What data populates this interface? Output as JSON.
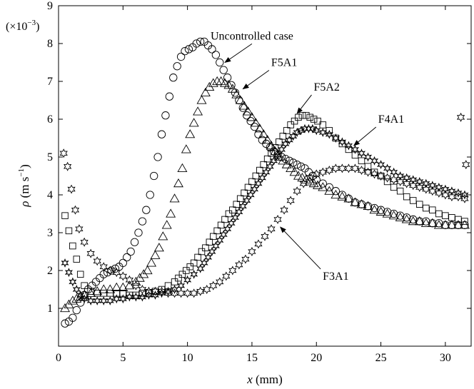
{
  "chart_data": {
    "type": "scatter",
    "title": "",
    "xlabel_var": "x",
    "xlabel_unit": "(mm)",
    "ylabel_var": "ρ",
    "ylabel_unit_main": "(m s",
    "ylabel_unit_sup": "−1",
    "ylabel_unit_end": ")",
    "y_multiplier_main": "(×10",
    "y_multiplier_sup": "−3",
    "y_multiplier_end": ")",
    "xlim": [
      0,
      32
    ],
    "ylim": [
      0,
      9
    ],
    "xticks": [
      "0",
      "5",
      "10",
      "15",
      "20",
      "25",
      "30"
    ],
    "yticks": [
      "1",
      "2",
      "3",
      "4",
      "5",
      "6",
      "7",
      "8",
      "9"
    ],
    "grid": false,
    "series": [
      {
        "name": "Uncontrolled case",
        "marker": "circle",
        "x": [
          0.5,
          0.8,
          1.1,
          1.4,
          1.7,
          2.0,
          2.3,
          2.6,
          2.9,
          3.2,
          3.5,
          3.8,
          4.1,
          4.4,
          4.7,
          5.0,
          5.3,
          5.6,
          5.9,
          6.2,
          6.5,
          6.8,
          7.1,
          7.4,
          7.7,
          8.0,
          8.3,
          8.6,
          8.9,
          9.2,
          9.5,
          9.8,
          10.1,
          10.4,
          10.7,
          11.0,
          11.3,
          11.6,
          11.9,
          12.2,
          12.5,
          12.8,
          13.1,
          13.4,
          13.7,
          14.0,
          14.3,
          14.6,
          14.9,
          15.2,
          15.5,
          15.8,
          16.1,
          16.4,
          16.7,
          17.0,
          17.3,
          17.6,
          17.9,
          18.2,
          18.5,
          18.8,
          19.1,
          19.4,
          19.7,
          20.0,
          20.5,
          21.0,
          21.5,
          22.0,
          22.5,
          23.0,
          23.5,
          24.0,
          24.5,
          25.0,
          25.5,
          26.0,
          26.5,
          27.0,
          27.5,
          28.0,
          28.5,
          29.0,
          29.5,
          30.0,
          30.5,
          31.0,
          31.5
        ],
        "y": [
          0.6,
          0.65,
          0.75,
          0.95,
          1.15,
          1.35,
          1.5,
          1.6,
          1.7,
          1.8,
          1.9,
          1.95,
          2.0,
          2.05,
          2.1,
          2.2,
          2.35,
          2.5,
          2.75,
          3.0,
          3.3,
          3.6,
          4.0,
          4.5,
          5.0,
          5.6,
          6.1,
          6.6,
          7.1,
          7.4,
          7.65,
          7.8,
          7.85,
          7.9,
          8.0,
          8.05,
          8.05,
          7.95,
          7.85,
          7.7,
          7.5,
          7.3,
          7.1,
          6.9,
          6.7,
          6.5,
          6.3,
          6.1,
          5.95,
          5.8,
          5.6,
          5.45,
          5.35,
          5.25,
          5.15,
          5.05,
          5.0,
          4.95,
          4.9,
          4.85,
          4.8,
          4.75,
          4.7,
          4.6,
          4.5,
          4.4,
          4.3,
          4.2,
          4.1,
          4.0,
          3.9,
          3.8,
          3.75,
          3.7,
          3.65,
          3.6,
          3.55,
          3.5,
          3.45,
          3.4,
          3.35,
          3.3,
          3.3,
          3.25,
          3.25,
          3.2,
          3.2,
          3.2,
          3.2
        ]
      },
      {
        "name": "F5A1",
        "marker": "triangle",
        "x": [
          0.5,
          0.8,
          1.1,
          1.4,
          1.7,
          2.0,
          2.5,
          3.0,
          3.5,
          4.0,
          4.5,
          5.0,
          5.5,
          6.0,
          6.3,
          6.6,
          6.9,
          7.2,
          7.5,
          7.8,
          8.1,
          8.4,
          8.7,
          9.0,
          9.3,
          9.6,
          9.9,
          10.2,
          10.5,
          10.8,
          11.1,
          11.4,
          11.7,
          12.0,
          12.3,
          12.6,
          12.9,
          13.2,
          13.5,
          13.8,
          14.1,
          14.4,
          14.7,
          15.0,
          15.3,
          15.6,
          15.9,
          16.2,
          16.5,
          16.8,
          17.1,
          17.4,
          17.7,
          18.0,
          18.3,
          18.6,
          18.9,
          19.2,
          19.5,
          19.8,
          20.1,
          20.5,
          21.0,
          21.5,
          22.0,
          22.5,
          23.0,
          23.5,
          24.0,
          24.5,
          25.0,
          25.5,
          26.0,
          26.5,
          27.0,
          27.5,
          28.0,
          28.5,
          29.0,
          29.5,
          30.0,
          30.5,
          31.0,
          31.5
        ],
        "y": [
          1.0,
          1.1,
          1.2,
          1.25,
          1.3,
          1.35,
          1.4,
          1.45,
          1.5,
          1.5,
          1.55,
          1.55,
          1.6,
          1.7,
          1.8,
          1.9,
          2.0,
          2.2,
          2.4,
          2.6,
          2.9,
          3.2,
          3.5,
          3.9,
          4.3,
          4.7,
          5.2,
          5.6,
          5.9,
          6.2,
          6.5,
          6.7,
          6.85,
          6.95,
          7.0,
          7.0,
          6.95,
          6.9,
          6.8,
          6.65,
          6.5,
          6.35,
          6.2,
          6.05,
          5.9,
          5.75,
          5.6,
          5.45,
          5.3,
          5.15,
          5.0,
          4.9,
          4.8,
          4.7,
          4.6,
          4.5,
          4.45,
          4.4,
          4.35,
          4.3,
          4.25,
          4.2,
          4.1,
          4.0,
          3.95,
          3.9,
          3.8,
          3.75,
          3.7,
          3.6,
          3.55,
          3.5,
          3.45,
          3.4,
          3.35,
          3.3,
          3.3,
          3.25,
          3.25,
          3.2,
          3.2,
          3.2,
          3.2,
          3.2
        ]
      },
      {
        "name": "F5A2",
        "marker": "square",
        "x": [
          0.5,
          0.8,
          1.1,
          1.4,
          1.7,
          2.0,
          2.5,
          3.0,
          3.5,
          4.0,
          4.5,
          5.0,
          5.5,
          6.0,
          6.5,
          7.0,
          7.5,
          8.0,
          8.5,
          9.0,
          9.3,
          9.6,
          9.9,
          10.2,
          10.5,
          10.8,
          11.1,
          11.4,
          11.7,
          12.0,
          12.3,
          12.6,
          12.9,
          13.2,
          13.5,
          13.8,
          14.1,
          14.4,
          14.7,
          15.0,
          15.3,
          15.6,
          15.9,
          16.2,
          16.5,
          16.8,
          17.1,
          17.4,
          17.7,
          18.0,
          18.3,
          18.6,
          18.9,
          19.2,
          19.5,
          19.8,
          20.1,
          20.5,
          21.0,
          21.5,
          22.0,
          22.5,
          23.0,
          23.5,
          24.0,
          24.5,
          25.0,
          25.5,
          26.0,
          26.5,
          27.0,
          27.5,
          28.0,
          28.5,
          29.0,
          29.5,
          30.0,
          30.5,
          31.0,
          31.5
        ],
        "y": [
          3.45,
          3.05,
          2.65,
          2.3,
          1.9,
          1.6,
          1.45,
          1.4,
          1.4,
          1.4,
          1.4,
          1.4,
          1.35,
          1.35,
          1.4,
          1.4,
          1.45,
          1.5,
          1.6,
          1.7,
          1.8,
          1.9,
          2.0,
          2.1,
          2.2,
          2.35,
          2.5,
          2.6,
          2.75,
          2.9,
          3.05,
          3.2,
          3.35,
          3.5,
          3.6,
          3.75,
          3.9,
          4.05,
          4.2,
          4.35,
          4.5,
          4.65,
          4.8,
          4.95,
          5.1,
          5.25,
          5.4,
          5.55,
          5.7,
          5.85,
          5.95,
          6.05,
          6.1,
          6.1,
          6.05,
          6.0,
          5.95,
          5.85,
          5.7,
          5.5,
          5.35,
          5.2,
          5.05,
          4.9,
          4.75,
          4.6,
          4.5,
          4.35,
          4.2,
          4.1,
          3.95,
          3.85,
          3.75,
          3.65,
          3.6,
          3.5,
          3.45,
          3.4,
          3.35,
          3.3
        ]
      },
      {
        "name": "F4A1",
        "marker": "plus-star",
        "x": [
          0.5,
          0.8,
          1.1,
          1.4,
          1.7,
          2.0,
          2.5,
          3.0,
          3.5,
          4.0,
          4.5,
          5.0,
          5.5,
          6.0,
          6.5,
          7.0,
          7.5,
          8.0,
          8.5,
          9.0,
          9.5,
          10.0,
          10.5,
          11.0,
          11.3,
          11.6,
          11.9,
          12.2,
          12.5,
          12.8,
          13.1,
          13.4,
          13.7,
          14.0,
          14.3,
          14.6,
          14.9,
          15.2,
          15.5,
          15.8,
          16.1,
          16.4,
          16.7,
          17.0,
          17.3,
          17.6,
          17.9,
          18.2,
          18.5,
          18.8,
          19.1,
          19.4,
          19.7,
          20.0,
          20.5,
          21.0,
          21.5,
          22.0,
          22.5,
          23.0,
          23.5,
          24.0,
          24.5,
          25.0,
          25.5,
          26.0,
          26.5,
          27.0,
          27.5,
          28.0,
          28.5,
          29.0,
          29.5,
          30.0,
          30.5,
          31.0,
          31.5
        ],
        "y": [
          2.2,
          1.95,
          1.7,
          1.5,
          1.35,
          1.25,
          1.2,
          1.2,
          1.2,
          1.2,
          1.25,
          1.25,
          1.3,
          1.3,
          1.3,
          1.35,
          1.35,
          1.4,
          1.45,
          1.5,
          1.6,
          1.75,
          1.9,
          2.05,
          2.2,
          2.35,
          2.5,
          2.65,
          2.8,
          2.95,
          3.1,
          3.25,
          3.4,
          3.55,
          3.7,
          3.85,
          4.0,
          4.15,
          4.3,
          4.45,
          4.6,
          4.75,
          4.9,
          5.05,
          5.2,
          5.35,
          5.45,
          5.55,
          5.65,
          5.7,
          5.75,
          5.75,
          5.75,
          5.7,
          5.65,
          5.6,
          5.5,
          5.4,
          5.3,
          5.2,
          5.1,
          5.0,
          4.9,
          4.8,
          4.7,
          4.6,
          4.5,
          4.45,
          4.4,
          4.35,
          4.3,
          4.25,
          4.2,
          4.15,
          4.1,
          4.05,
          4.0
        ]
      },
      {
        "name": "F3A1",
        "marker": "star",
        "x": [
          0.4,
          0.7,
          1.0,
          1.3,
          1.6,
          2.0,
          2.5,
          3.0,
          3.5,
          4.0,
          4.5,
          5.0,
          5.5,
          6.0,
          6.5,
          7.0,
          7.5,
          8.0,
          8.5,
          9.0,
          9.5,
          10.0,
          10.5,
          11.0,
          11.5,
          12.0,
          12.5,
          13.0,
          13.5,
          14.0,
          14.5,
          15.0,
          15.5,
          16.0,
          16.5,
          17.0,
          17.5,
          18.0,
          18.5,
          19.0,
          19.5,
          20.0,
          20.5,
          21.0,
          21.5,
          22.0,
          22.5,
          23.0,
          23.5,
          24.0,
          24.5,
          25.0,
          25.5,
          26.0,
          26.5,
          27.0,
          27.5,
          28.0,
          28.5,
          29.0,
          29.5,
          30.0,
          30.5,
          31.0,
          31.5
        ],
        "y": [
          5.1,
          4.75,
          4.15,
          3.6,
          3.1,
          2.75,
          2.45,
          2.25,
          2.1,
          2.0,
          1.95,
          1.85,
          1.75,
          1.6,
          1.5,
          1.45,
          1.45,
          1.45,
          1.4,
          1.4,
          1.4,
          1.4,
          1.4,
          1.45,
          1.5,
          1.6,
          1.7,
          1.85,
          2.0,
          2.15,
          2.3,
          2.5,
          2.7,
          2.9,
          3.1,
          3.35,
          3.6,
          3.85,
          4.1,
          4.3,
          4.45,
          4.55,
          4.6,
          4.65,
          4.7,
          4.7,
          4.7,
          4.7,
          4.65,
          4.6,
          4.55,
          4.5,
          4.45,
          4.4,
          4.35,
          4.3,
          4.25,
          4.2,
          4.15,
          4.1,
          4.05,
          4.0,
          3.95,
          3.95,
          3.9
        ]
      }
    ],
    "outliers": {
      "marker": "star",
      "x": [
        31.2,
        31.6
      ],
      "y": [
        6.05,
        4.8
      ]
    },
    "annotations": [
      {
        "label": "Uncontrolled case",
        "target_series": "Uncontrolled case",
        "text_x": 15.0,
        "text_y": 8.2,
        "arrow_to_x": 12.9,
        "arrow_to_y": 7.5
      },
      {
        "label": "F5A1",
        "target_series": "F5A1",
        "text_x": 17.5,
        "text_y": 7.5,
        "arrow_to_x": 14.3,
        "arrow_to_y": 6.8
      },
      {
        "label": "F5A2",
        "target_series": "F5A2",
        "text_x": 20.8,
        "text_y": 6.85,
        "arrow_to_x": 18.5,
        "arrow_to_y": 6.15
      },
      {
        "label": "F4A1",
        "target_series": "F4A1",
        "text_x": 25.8,
        "text_y": 6.0,
        "arrow_to_x": 22.9,
        "arrow_to_y": 5.3
      },
      {
        "label": "F3A1",
        "target_series": "F3A1",
        "text_x": 21.5,
        "text_y": 1.85,
        "arrow_to_x": 17.2,
        "arrow_to_y": 3.15
      }
    ]
  }
}
